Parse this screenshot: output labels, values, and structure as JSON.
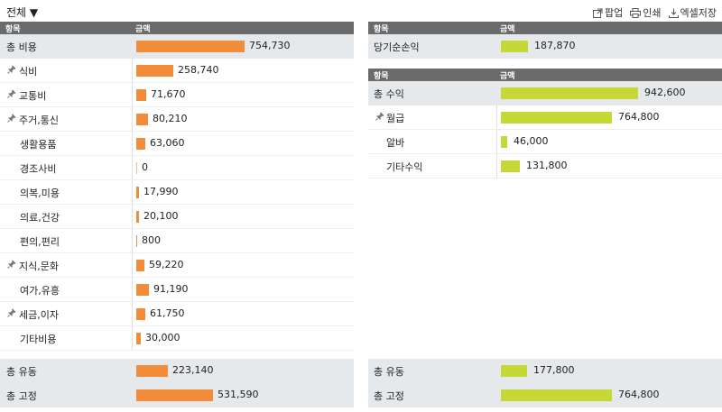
{
  "toolbar": {
    "filter_label": "전체 ▼",
    "popup_label": "팝업",
    "print_label": "인쇄",
    "excel_label": "엑셀저장"
  },
  "colors": {
    "expense_bar": "#f28c38",
    "income_bar": "#c5d836",
    "header_bg": "#6b6b6b",
    "total_row_bg": "#e6e9ec"
  },
  "expense_table": {
    "header": {
      "item": "항목",
      "amount": "금액"
    },
    "total": {
      "label": "총 비용",
      "value": "754,730",
      "amount": 754730
    },
    "rows": [
      {
        "label": "식비",
        "value": "258,740",
        "amount": 258740,
        "pinned": true
      },
      {
        "label": "교통비",
        "value": "71,670",
        "amount": 71670,
        "pinned": true
      },
      {
        "label": "주거,통신",
        "value": "80,210",
        "amount": 80210,
        "pinned": true
      },
      {
        "label": "생활용품",
        "value": "63,060",
        "amount": 63060,
        "pinned": false
      },
      {
        "label": "경조사비",
        "value": "0",
        "amount": 0,
        "pinned": false
      },
      {
        "label": "의복,미용",
        "value": "17,990",
        "amount": 17990,
        "pinned": false
      },
      {
        "label": "의료,건강",
        "value": "20,100",
        "amount": 20100,
        "pinned": false
      },
      {
        "label": "편의,편리",
        "value": "800",
        "amount": 800,
        "pinned": false
      },
      {
        "label": "지식,문화",
        "value": "59,220",
        "amount": 59220,
        "pinned": true
      },
      {
        "label": "여가,유흥",
        "value": "91,190",
        "amount": 91190,
        "pinned": false
      },
      {
        "label": "세금,이자",
        "value": "61,750",
        "amount": 61750,
        "pinned": true
      },
      {
        "label": "기타비용",
        "value": "30,000",
        "amount": 30000,
        "pinned": false
      }
    ],
    "footer": [
      {
        "label": "총 유동",
        "value": "223,140",
        "amount": 223140
      },
      {
        "label": "총 고정",
        "value": "531,590",
        "amount": 531590
      }
    ]
  },
  "net_income_table": {
    "header": {
      "item": "항목",
      "amount": "금액"
    },
    "row": {
      "label": "당기순손익",
      "value": "187,870",
      "amount": 187870
    }
  },
  "income_table": {
    "header": {
      "item": "항목",
      "amount": "금액"
    },
    "total": {
      "label": "총 수익",
      "value": "942,600",
      "amount": 942600
    },
    "rows": [
      {
        "label": "월급",
        "value": "764,800",
        "amount": 764800,
        "pinned": true
      },
      {
        "label": "알바",
        "value": "46,000",
        "amount": 46000,
        "pinned": false
      },
      {
        "label": "기타수익",
        "value": "131,800",
        "amount": 131800,
        "pinned": false
      }
    ],
    "footer": [
      {
        "label": "총 유동",
        "value": "177,800",
        "amount": 177800
      },
      {
        "label": "총 고정",
        "value": "764,800",
        "amount": 764800
      }
    ]
  }
}
